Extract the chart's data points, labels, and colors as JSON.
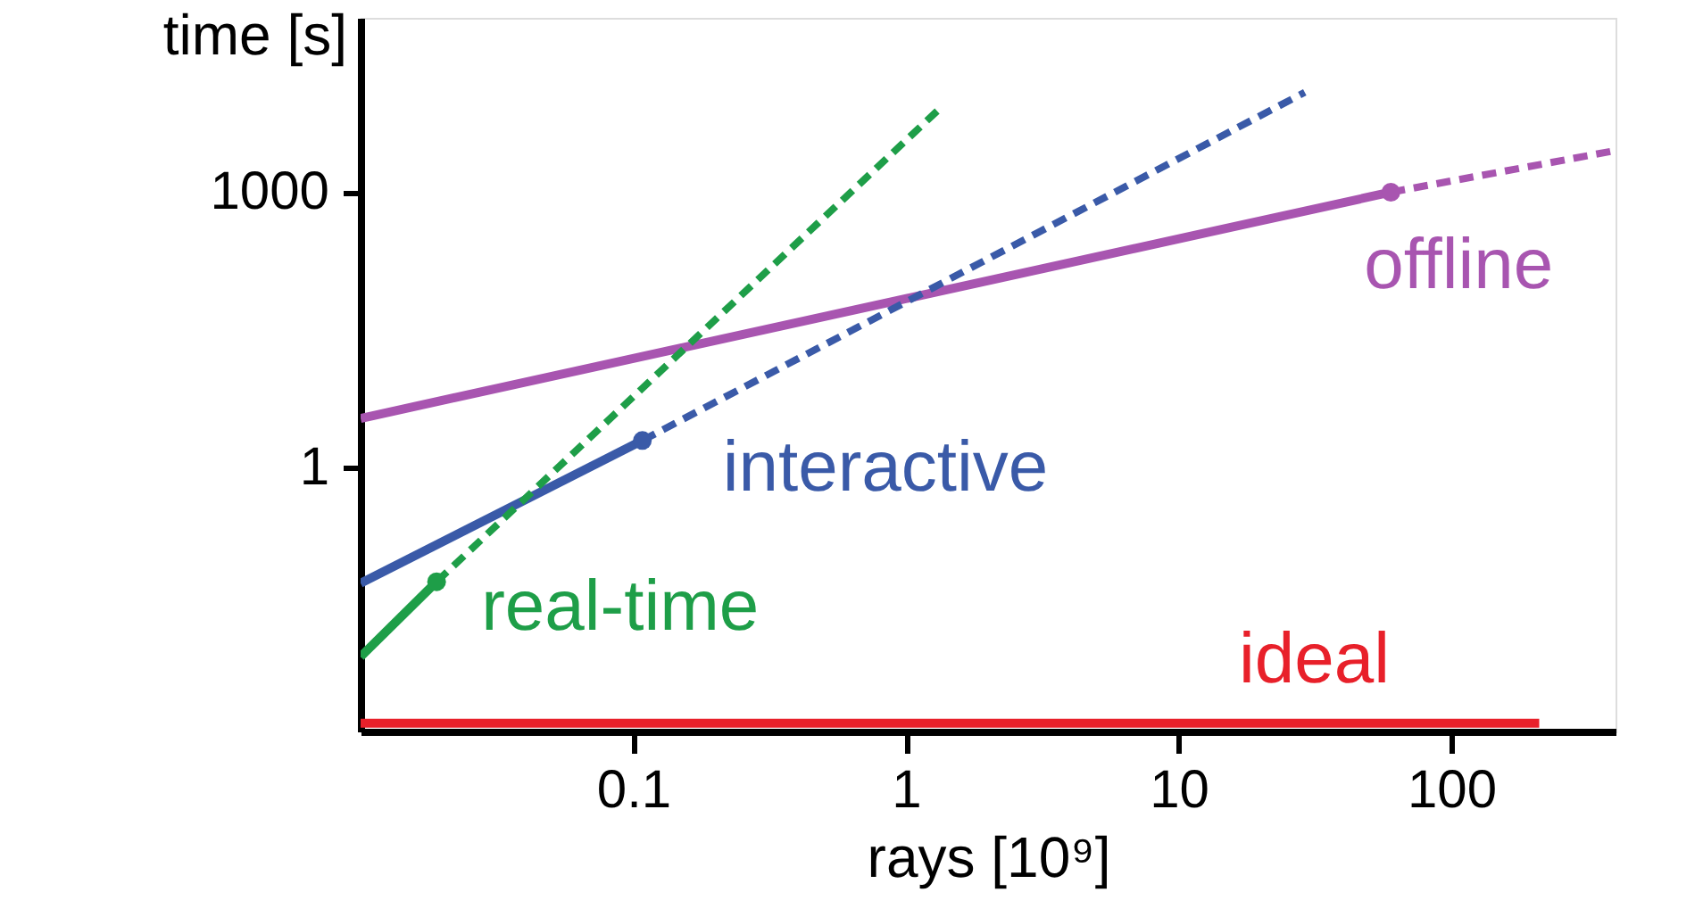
{
  "chart_data": {
    "type": "line",
    "xlabel": "rays [10⁹]",
    "ylabel": "time [s]",
    "log": "xy",
    "xlim": [
      0.01,
      400
    ],
    "ylim": [
      0.0013,
      80000
    ],
    "xticks": [
      0.1,
      1,
      10,
      100
    ],
    "yticks": [
      1,
      1000
    ],
    "grid": false,
    "line_style": "solid",
    "series": [
      {
        "name": "offline",
        "color": "#a855b0",
        "x": [
          0.01,
          60
        ],
        "values": [
          3.4,
          1000
        ]
      },
      {
        "color": "#a855b0",
        "line_style": "dashed",
        "x": [
          60,
          400
        ],
        "values": [
          1000,
          2850
        ]
      },
      {
        "color": "#a855b0",
        "type": "scatter",
        "marker": "circle",
        "x": [
          60
        ],
        "values": [
          1000
        ]
      },
      {
        "name": "interactive",
        "color": "#3a5aa8",
        "x": [
          0.01,
          0.108
        ],
        "values": [
          0.054,
          1.95
        ]
      },
      {
        "color": "#3a5aa8",
        "line_style": "dashed",
        "x": [
          0.108,
          29
        ],
        "values": [
          1.95,
          12300
        ]
      },
      {
        "color": "#3a5aa8",
        "type": "scatter",
        "marker": "circle",
        "x": [
          0.108
        ],
        "values": [
          1.95
        ]
      },
      {
        "name": "real-time",
        "color": "#1e9e48",
        "x": [
          0.01,
          0.019
        ],
        "values": [
          0.0085,
          0.056
        ]
      },
      {
        "color": "#1e9e48",
        "line_style": "dashed",
        "x": [
          0.019,
          1.36
        ],
        "values": [
          0.056,
          8700
        ]
      },
      {
        "color": "#1e9e48",
        "type": "scatter",
        "marker": "circle",
        "x": [
          0.019
        ],
        "values": [
          0.056
        ]
      },
      {
        "name": "ideal",
        "color": "#e8202a",
        "x": [
          0.01,
          210
        ],
        "values": [
          0.0016,
          0.0016
        ]
      }
    ]
  }
}
